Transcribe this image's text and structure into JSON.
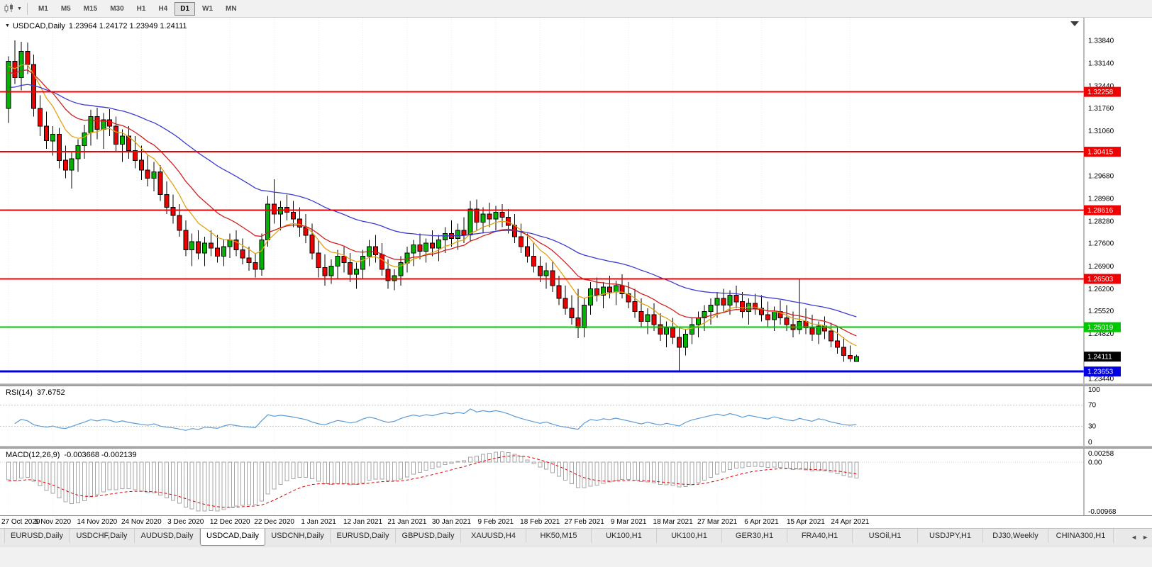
{
  "toolbar": {
    "timeframes": [
      "M1",
      "M5",
      "M15",
      "M30",
      "H1",
      "H4",
      "D1",
      "W1",
      "MN"
    ],
    "active_timeframe": "D1"
  },
  "icons": {
    "one_click_arrow": "▼",
    "dropdown_caret": "▼",
    "tab_scroll_left": "◄",
    "tab_scroll_right": "►"
  },
  "chart": {
    "symbol_period": "USDCAD,Daily",
    "ohlc_text": "1.23964 1.24172 1.23949 1.24111",
    "price_axis_labels": [
      "1.33840",
      "1.33140",
      "1.32440",
      "1.31760",
      "1.31060",
      "1.30360",
      "1.29680",
      "1.28980",
      "1.28280",
      "1.27600",
      "1.26900",
      "1.26200",
      "1.25520",
      "1.24820",
      "1.24120",
      "1.23440"
    ],
    "hlines": [
      {
        "price": 1.32258,
        "label": "1.32258",
        "color": "#f00000",
        "weight": 2
      },
      {
        "price": 1.30415,
        "label": "1.30415",
        "color": "#f00000",
        "weight": 2
      },
      {
        "price": 1.28616,
        "label": "1.28616",
        "color": "#f00000",
        "weight": 2
      },
      {
        "price": 1.26503,
        "label": "1.26503",
        "color": "#f00000",
        "weight": 2
      },
      {
        "price": 1.25019,
        "label": "1.25019",
        "color": "#00c800",
        "weight": 2
      },
      {
        "price": 1.23653,
        "label": "1.23653",
        "color": "#0000e0",
        "weight": 3
      }
    ],
    "current_price": {
      "value": 1.24111,
      "label": "1.24111",
      "bg": "#000000"
    },
    "date_labels": [
      "27 Oct 2020",
      "5 Nov 2020",
      "14 Nov 2020",
      "24 Nov 2020",
      "3 Dec 2020",
      "12 Dec 2020",
      "22 Dec 2020",
      "1 Jan 2021",
      "12 Jan 2021",
      "21 Jan 2021",
      "30 Jan 2021",
      "9 Feb 2021",
      "18 Feb 2021",
      "27 Feb 2021",
      "9 Mar 2021",
      "18 Mar 2021",
      "27 Mar 2021",
      "6 Apr 2021",
      "15 Apr 2021",
      "24 Apr 2021"
    ]
  },
  "rsi": {
    "label": "RSI(14)",
    "value": "37.6752",
    "axis_labels": [
      "100",
      "70",
      "30",
      "0"
    ],
    "levels": [
      70,
      30
    ],
    "color": "#5b9bd5"
  },
  "macd": {
    "label": "MACD(12,26,9)",
    "values": "-0.003668 -0.002139",
    "axis_labels": [
      "0.00258",
      "0.00",
      "-0.00968"
    ],
    "signal_color": "#e00000",
    "hist_color": "#a6a6a6"
  },
  "tabs": {
    "items": [
      "EURUSD,Daily",
      "USDCHF,Daily",
      "AUDUSD,Daily",
      "USDCAD,Daily",
      "USDCNH,Daily",
      "EURUSD,Daily",
      "GBPUSD,Daily",
      "XAUUSD,H4",
      "HK50,M15",
      "UK100,H1",
      "UK100,H1",
      "GER30,H1",
      "FRA40,H1",
      "USOil,H1",
      "USDJPY,H1",
      "DJ30,Weekly",
      "CHINA300,H1"
    ],
    "active_index": 3
  },
  "chart_data": {
    "type": "candlestick",
    "symbol": "USDCAD",
    "timeframe": "Daily",
    "label_every": 7,
    "view": {
      "price_top": 1.34538,
      "price_bottom": 1.23287
    },
    "colors": {
      "bull": "#00b400",
      "bear": "#ee0000",
      "outline": "#000000",
      "ma_fast": "#e0a414",
      "ma_mid": "#d02020",
      "ma_slow": "#3b3bd0"
    },
    "ma_periods": {
      "fast": 8,
      "mid": 16,
      "slow": 42
    },
    "ma_seeds": {
      "fast": 1.33,
      "mid": 1.328,
      "slow": 1.3235
    },
    "macd_seeds": {
      "fast": 1.333,
      "slow": 1.3375,
      "signal": -0.0045
    },
    "candles": [
      [
        1.3175,
        1.3335,
        1.313,
        1.332
      ],
      [
        1.332,
        1.3384,
        1.325,
        1.327
      ],
      [
        1.327,
        1.338,
        1.323,
        1.335
      ],
      [
        1.335,
        1.3378,
        1.328,
        1.331
      ],
      [
        1.331,
        1.334,
        1.315,
        1.3175
      ],
      [
        1.3175,
        1.3215,
        1.309,
        1.312
      ],
      [
        1.312,
        1.3165,
        1.305,
        1.3075
      ],
      [
        1.3075,
        1.312,
        1.303,
        1.3095
      ],
      [
        1.3095,
        1.3115,
        1.299,
        1.3015
      ],
      [
        1.3015,
        1.306,
        1.296,
        1.2985
      ],
      [
        1.2985,
        1.304,
        1.2928,
        1.302
      ],
      [
        1.302,
        1.308,
        1.298,
        1.306
      ],
      [
        1.306,
        1.3125,
        1.302,
        1.31
      ],
      [
        1.31,
        1.317,
        1.306,
        1.315
      ],
      [
        1.315,
        1.3177,
        1.308,
        1.311
      ],
      [
        1.311,
        1.316,
        1.305,
        1.314
      ],
      [
        1.314,
        1.3172,
        1.309,
        1.312
      ],
      [
        1.312,
        1.315,
        1.304,
        1.3065
      ],
      [
        1.3065,
        1.311,
        1.301,
        1.309
      ],
      [
        1.309,
        1.312,
        1.302,
        1.3045
      ],
      [
        1.3045,
        1.309,
        1.299,
        1.3015
      ],
      [
        1.3015,
        1.306,
        1.2955,
        1.2985
      ],
      [
        1.2985,
        1.303,
        1.2935,
        1.296
      ],
      [
        1.296,
        1.301,
        1.292,
        1.298
      ],
      [
        1.298,
        1.3,
        1.289,
        1.291
      ],
      [
        1.291,
        1.295,
        1.285,
        1.287
      ],
      [
        1.287,
        1.291,
        1.282,
        1.2845
      ],
      [
        1.2845,
        1.288,
        1.278,
        1.28
      ],
      [
        1.28,
        1.283,
        1.272,
        1.274
      ],
      [
        1.274,
        1.279,
        1.269,
        1.2765
      ],
      [
        1.2765,
        1.28,
        1.271,
        1.273
      ],
      [
        1.273,
        1.278,
        1.269,
        1.276
      ],
      [
        1.276,
        1.28,
        1.272,
        1.2745
      ],
      [
        1.2745,
        1.2785,
        1.27,
        1.272
      ],
      [
        1.272,
        1.277,
        1.269,
        1.275
      ],
      [
        1.275,
        1.279,
        1.2715,
        1.277
      ],
      [
        1.277,
        1.28,
        1.272,
        1.274
      ],
      [
        1.274,
        1.2775,
        1.2695,
        1.2715
      ],
      [
        1.2715,
        1.275,
        1.2675,
        1.27
      ],
      [
        1.27,
        1.273,
        1.2655,
        1.268
      ],
      [
        1.268,
        1.279,
        1.266,
        1.277
      ],
      [
        1.277,
        1.2905,
        1.275,
        1.288
      ],
      [
        1.288,
        1.2957,
        1.282,
        1.285
      ],
      [
        1.285,
        1.289,
        1.28,
        1.287
      ],
      [
        1.287,
        1.291,
        1.283,
        1.2855
      ],
      [
        1.2855,
        1.289,
        1.281,
        1.2835
      ],
      [
        1.2835,
        1.287,
        1.278,
        1.281
      ],
      [
        1.281,
        1.285,
        1.276,
        1.2785
      ],
      [
        1.2785,
        1.282,
        1.271,
        1.273
      ],
      [
        1.273,
        1.277,
        1.2655,
        1.2685
      ],
      [
        1.2685,
        1.2725,
        1.263,
        1.266
      ],
      [
        1.266,
        1.271,
        1.2635,
        1.269
      ],
      [
        1.269,
        1.274,
        1.265,
        1.272
      ],
      [
        1.272,
        1.275,
        1.267,
        1.27
      ],
      [
        1.27,
        1.273,
        1.264,
        1.2665
      ],
      [
        1.2665,
        1.27,
        1.262,
        1.268
      ],
      [
        1.268,
        1.274,
        1.265,
        1.272
      ],
      [
        1.272,
        1.277,
        1.269,
        1.275
      ],
      [
        1.275,
        1.2785,
        1.27,
        1.2725
      ],
      [
        1.2725,
        1.276,
        1.266,
        1.268
      ],
      [
        1.268,
        1.271,
        1.262,
        1.2645
      ],
      [
        1.2645,
        1.268,
        1.2615,
        1.266
      ],
      [
        1.266,
        1.272,
        1.263,
        1.27
      ],
      [
        1.27,
        1.275,
        1.267,
        1.273
      ],
      [
        1.273,
        1.277,
        1.269,
        1.2755
      ],
      [
        1.2755,
        1.279,
        1.271,
        1.2735
      ],
      [
        1.2735,
        1.2775,
        1.27,
        1.276
      ],
      [
        1.276,
        1.28,
        1.272,
        1.2745
      ],
      [
        1.2745,
        1.2785,
        1.2705,
        1.277
      ],
      [
        1.277,
        1.281,
        1.273,
        1.279
      ],
      [
        1.279,
        1.283,
        1.275,
        1.2775
      ],
      [
        1.2775,
        1.282,
        1.274,
        1.28
      ],
      [
        1.28,
        1.284,
        1.276,
        1.2785
      ],
      [
        1.2785,
        1.289,
        1.2765,
        1.2865
      ],
      [
        1.2865,
        1.2895,
        1.28,
        1.2825
      ],
      [
        1.2825,
        1.287,
        1.279,
        1.285
      ],
      [
        1.285,
        1.2885,
        1.281,
        1.2835
      ],
      [
        1.2835,
        1.2875,
        1.28,
        1.2855
      ],
      [
        1.2855,
        1.288,
        1.281,
        1.284
      ],
      [
        1.284,
        1.2865,
        1.279,
        1.2815
      ],
      [
        1.2815,
        1.285,
        1.276,
        1.278
      ],
      [
        1.278,
        1.282,
        1.273,
        1.275
      ],
      [
        1.275,
        1.279,
        1.27,
        1.272
      ],
      [
        1.272,
        1.276,
        1.267,
        1.269
      ],
      [
        1.269,
        1.272,
        1.264,
        1.266
      ],
      [
        1.266,
        1.27,
        1.262,
        1.2675
      ],
      [
        1.2675,
        1.2705,
        1.261,
        1.263
      ],
      [
        1.263,
        1.266,
        1.257,
        1.259
      ],
      [
        1.259,
        1.263,
        1.254,
        1.256
      ],
      [
        1.256,
        1.26,
        1.251,
        1.253
      ],
      [
        1.253,
        1.262,
        1.2468,
        1.25
      ],
      [
        1.25,
        1.259,
        1.247,
        1.257
      ],
      [
        1.257,
        1.264,
        1.254,
        1.262
      ],
      [
        1.262,
        1.2655,
        1.258,
        1.26
      ],
      [
        1.26,
        1.264,
        1.256,
        1.2625
      ],
      [
        1.2625,
        1.266,
        1.259,
        1.261
      ],
      [
        1.261,
        1.2645,
        1.257,
        1.263
      ],
      [
        1.263,
        1.2665,
        1.259,
        1.2605
      ],
      [
        1.2605,
        1.264,
        1.256,
        1.258
      ],
      [
        1.258,
        1.262,
        1.253,
        1.255
      ],
      [
        1.255,
        1.259,
        1.25,
        1.252
      ],
      [
        1.252,
        1.256,
        1.248,
        1.254
      ],
      [
        1.254,
        1.2575,
        1.249,
        1.251
      ],
      [
        1.251,
        1.2545,
        1.246,
        1.248
      ],
      [
        1.248,
        1.252,
        1.244,
        1.25
      ],
      [
        1.25,
        1.253,
        1.245,
        1.247
      ],
      [
        1.247,
        1.25,
        1.2365,
        1.244
      ],
      [
        1.244,
        1.2495,
        1.2415,
        1.248
      ],
      [
        1.248,
        1.253,
        1.245,
        1.251
      ],
      [
        1.251,
        1.255,
        1.247,
        1.253
      ],
      [
        1.253,
        1.257,
        1.249,
        1.255
      ],
      [
        1.255,
        1.259,
        1.251,
        1.257
      ],
      [
        1.257,
        1.261,
        1.253,
        1.259
      ],
      [
        1.259,
        1.262,
        1.255,
        1.257
      ],
      [
        1.257,
        1.2615,
        1.254,
        1.26
      ],
      [
        1.26,
        1.263,
        1.256,
        1.258
      ],
      [
        1.258,
        1.261,
        1.253,
        1.255
      ],
      [
        1.255,
        1.259,
        1.251,
        1.2575
      ],
      [
        1.2575,
        1.2605,
        1.254,
        1.256
      ],
      [
        1.256,
        1.26,
        1.252,
        1.254
      ],
      [
        1.254,
        1.258,
        1.25,
        1.2525
      ],
      [
        1.2525,
        1.2565,
        1.249,
        1.255
      ],
      [
        1.255,
        1.2585,
        1.251,
        1.253
      ],
      [
        1.253,
        1.257,
        1.249,
        1.251
      ],
      [
        1.251,
        1.255,
        1.247,
        1.2495
      ],
      [
        1.2495,
        1.265,
        1.248,
        1.252
      ],
      [
        1.252,
        1.256,
        1.248,
        1.25
      ],
      [
        1.25,
        1.254,
        1.246,
        1.248
      ],
      [
        1.248,
        1.252,
        1.245,
        1.2505
      ],
      [
        1.2505,
        1.2535,
        1.2465,
        1.249
      ],
      [
        1.249,
        1.2515,
        1.244,
        1.246
      ],
      [
        1.246,
        1.25,
        1.242,
        1.244
      ],
      [
        1.244,
        1.247,
        1.2395,
        1.2415
      ],
      [
        1.2415,
        1.2445,
        1.2395,
        1.2405
      ],
      [
        1.23964,
        1.24172,
        1.23949,
        1.24111
      ]
    ]
  }
}
